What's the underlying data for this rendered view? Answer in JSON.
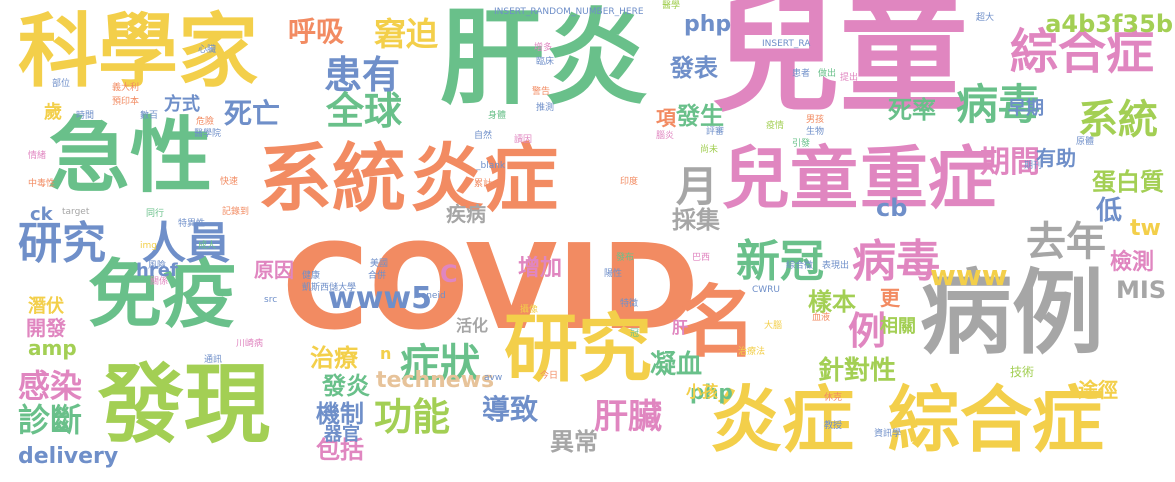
{
  "palette": {
    "green": "#69c08a",
    "blue": "#6f8fc9",
    "yellow": "#f3cf4a",
    "pink": "#e086c0",
    "orange": "#f28b62",
    "gray": "#a6a6a6",
    "lime": "#a3cf54",
    "tan": "#e7c39a"
  },
  "words": [
    {
      "text": "兒童",
      "color": "pink"
    },
    {
      "text": "COVID",
      "color": "orange"
    },
    {
      "text": "肝炎",
      "color": "green"
    },
    {
      "text": "病例",
      "color": "gray"
    },
    {
      "text": "科學家",
      "color": "yellow"
    },
    {
      "text": "急性",
      "color": "green"
    },
    {
      "text": "發現",
      "color": "lime"
    },
    {
      "text": "系統",
      "color": "orange"
    },
    {
      "text": "炎症",
      "color": "orange"
    },
    {
      "text": "兒童",
      "color": "pink"
    },
    {
      "text": "重症",
      "color": "pink"
    },
    {
      "text": "免疫",
      "color": "green"
    },
    {
      "text": "研究",
      "color": "yellow"
    },
    {
      "text": "名",
      "color": "orange"
    },
    {
      "text": "炎症",
      "color": "yellow"
    },
    {
      "text": "綜合症",
      "color": "yellow"
    },
    {
      "text": "綜合症",
      "color": "pink"
    },
    {
      "text": "系統",
      "color": "lime"
    },
    {
      "text": "病毒",
      "color": "green"
    },
    {
      "text": "研究",
      "color": "blue"
    },
    {
      "text": "人員",
      "color": "blue"
    },
    {
      "text": "新冠",
      "color": "green"
    },
    {
      "text": "病毒",
      "color": "pink"
    },
    {
      "text": "去年",
      "color": "gray"
    },
    {
      "text": "全球",
      "color": "green"
    },
    {
      "text": "患有",
      "color": "blue"
    },
    {
      "text": "窘迫",
      "color": "yellow"
    },
    {
      "text": "呼吸",
      "color": "orange"
    },
    {
      "text": "死亡",
      "color": "blue"
    },
    {
      "text": "症狀",
      "color": "green"
    },
    {
      "text": "功能",
      "color": "lime"
    },
    {
      "text": "肝臟",
      "color": "pink"
    },
    {
      "text": "感染",
      "color": "pink"
    },
    {
      "text": "診斷",
      "color": "green"
    },
    {
      "text": "期間",
      "color": "pink"
    },
    {
      "text": "月",
      "color": "gray"
    },
    {
      "text": "例",
      "color": "pink"
    },
    {
      "text": "www5",
      "color": "blue"
    },
    {
      "text": "www",
      "color": "yellow"
    },
    {
      "text": "導致",
      "color": "blue"
    },
    {
      "text": "異常",
      "color": "gray"
    },
    {
      "text": "包括",
      "color": "pink"
    },
    {
      "text": "機制",
      "color": "blue"
    },
    {
      "text": "器官",
      "color": "blue"
    },
    {
      "text": "發炎",
      "color": "green"
    },
    {
      "text": "治療",
      "color": "yellow"
    },
    {
      "text": "凝血",
      "color": "green"
    },
    {
      "text": "針對性",
      "color": "lime"
    },
    {
      "text": "技術",
      "color": "lime"
    },
    {
      "text": "發表",
      "color": "blue"
    },
    {
      "text": "發生",
      "color": "green"
    },
    {
      "text": "死率",
      "color": "green"
    },
    {
      "text": "早期",
      "color": "blue"
    },
    {
      "text": "有助",
      "color": "blue"
    },
    {
      "text": "蛋白質",
      "color": "lime"
    },
    {
      "text": "低",
      "color": "blue"
    },
    {
      "text": "tw",
      "color": "yellow"
    },
    {
      "text": "檢測",
      "color": "pink"
    },
    {
      "text": "MIS",
      "color": "gray"
    },
    {
      "text": "a4b3f35b",
      "color": "lime"
    },
    {
      "text": "php",
      "color": "blue"
    },
    {
      "text": "php",
      "color": "green"
    },
    {
      "text": "cb",
      "color": "blue"
    },
    {
      "text": "採集",
      "color": "gray"
    },
    {
      "text": "增加",
      "color": "pink"
    },
    {
      "text": "樣本",
      "color": "lime"
    },
    {
      "text": "更",
      "color": "orange"
    },
    {
      "text": "相關",
      "color": "lime"
    },
    {
      "text": "疾病",
      "color": "gray"
    },
    {
      "text": "原因",
      "color": "pink"
    },
    {
      "text": "開發",
      "color": "pink"
    },
    {
      "text": "潛伏",
      "color": "yellow"
    },
    {
      "text": "amp",
      "color": "lime"
    },
    {
      "text": "href",
      "color": "blue"
    },
    {
      "text": "ck",
      "color": "blue"
    },
    {
      "text": "活化",
      "color": "gray"
    },
    {
      "text": "delivery",
      "color": "blue"
    },
    {
      "text": "technews",
      "color": "tan"
    },
    {
      "text": "小孩",
      "color": "yellow"
    },
    {
      "text": "肝",
      "color": "pink"
    },
    {
      "text": "歲",
      "color": "yellow"
    },
    {
      "text": "方式",
      "color": "blue"
    },
    {
      "text": "C",
      "color": "pink"
    },
    {
      "text": "n",
      "color": "yellow"
    },
    {
      "text": "項",
      "color": "orange"
    },
    {
      "text": "途徑",
      "color": "yellow"
    },
    {
      "text": "INSERT_RANDOM_NUMBER_HERE",
      "color": "blue"
    },
    {
      "text": "醫學",
      "color": "lime"
    },
    {
      "text": "增多",
      "color": "pink"
    },
    {
      "text": "臨床",
      "color": "blue"
    },
    {
      "text": "超大",
      "color": "blue"
    },
    {
      "text": "INSERT_RA",
      "color": "blue"
    },
    {
      "text": "患者",
      "color": "blue"
    },
    {
      "text": "提出",
      "color": "pink"
    },
    {
      "text": "做出",
      "color": "green"
    },
    {
      "text": "心臟",
      "color": "blue"
    },
    {
      "text": "部位",
      "color": "blue"
    },
    {
      "text": "義大利",
      "color": "orange"
    },
    {
      "text": "預印本",
      "color": "orange"
    },
    {
      "text": "時間",
      "color": "blue"
    },
    {
      "text": "數百",
      "color": "blue"
    },
    {
      "text": "危險",
      "color": "orange"
    },
    {
      "text": "醫學院",
      "color": "blue"
    },
    {
      "text": "警告",
      "color": "orange"
    },
    {
      "text": "推測",
      "color": "blue"
    },
    {
      "text": "身體",
      "color": "green"
    },
    {
      "text": "自然",
      "color": "blue"
    },
    {
      "text": "讀因",
      "color": "pink"
    },
    {
      "text": "引發",
      "color": "green"
    },
    {
      "text": "生物",
      "color": "blue"
    },
    {
      "text": "原體",
      "color": "blue"
    },
    {
      "text": "男孩",
      "color": "orange"
    },
    {
      "text": "評審",
      "color": "blue"
    },
    {
      "text": "疫情",
      "color": "lime"
    },
    {
      "text": "尚未",
      "color": "lime"
    },
    {
      "text": "腦炎",
      "color": "pink"
    },
    {
      "text": "_blank",
      "color": "blue"
    },
    {
      "text": "累計",
      "color": "orange"
    },
    {
      "text": "印度",
      "color": "orange"
    },
    {
      "text": "中毒性",
      "color": "orange"
    },
    {
      "text": "情緒",
      "color": "pink"
    },
    {
      "text": "快速",
      "color": "orange"
    },
    {
      "text": "記錄到",
      "color": "orange"
    },
    {
      "text": "特異性",
      "color": "blue"
    },
    {
      "text": "成人",
      "color": "green"
    },
    {
      "text": "同行",
      "color": "green"
    },
    {
      "text": "target",
      "color": "gray"
    },
    {
      "text": "img",
      "color": "yellow"
    },
    {
      "text": "風險",
      "color": "blue"
    },
    {
      "text": "關係",
      "color": "pink"
    },
    {
      "text": "美國",
      "color": "blue"
    },
    {
      "text": "合併",
      "color": "blue"
    },
    {
      "text": "健康",
      "color": "blue"
    },
    {
      "text": "凱斯西儲大學",
      "color": "blue"
    },
    {
      "text": "zoneid",
      "color": "blue"
    },
    {
      "text": "發布",
      "color": "green"
    },
    {
      "text": "陽性",
      "color": "blue"
    },
    {
      "text": "巴西",
      "color": "pink"
    },
    {
      "text": "綜合徵",
      "color": "blue"
    },
    {
      "text": "表現出",
      "color": "blue"
    },
    {
      "text": "CWRU",
      "color": "blue"
    },
    {
      "text": "血液",
      "color": "orange"
    },
    {
      "text": "特徵",
      "color": "blue"
    },
    {
      "text": "攝像",
      "color": "yellow"
    },
    {
      "text": "治療法",
      "color": "yellow"
    },
    {
      "text": "冠",
      "color": "green"
    },
    {
      "text": "大腦",
      "color": "yellow"
    },
    {
      "text": "川崎病",
      "color": "pink"
    },
    {
      "text": "通訊",
      "color": "blue"
    },
    {
      "text": "avw",
      "color": "blue"
    },
    {
      "text": "今日",
      "color": "orange"
    },
    {
      "text": "休克",
      "color": "orange"
    },
    {
      "text": "教授",
      "color": "blue"
    },
    {
      "text": "資訊學",
      "color": "blue"
    },
    {
      "text": "src",
      "color": "blue"
    },
    {
      "text": "期刊",
      "color": "blue"
    }
  ]
}
